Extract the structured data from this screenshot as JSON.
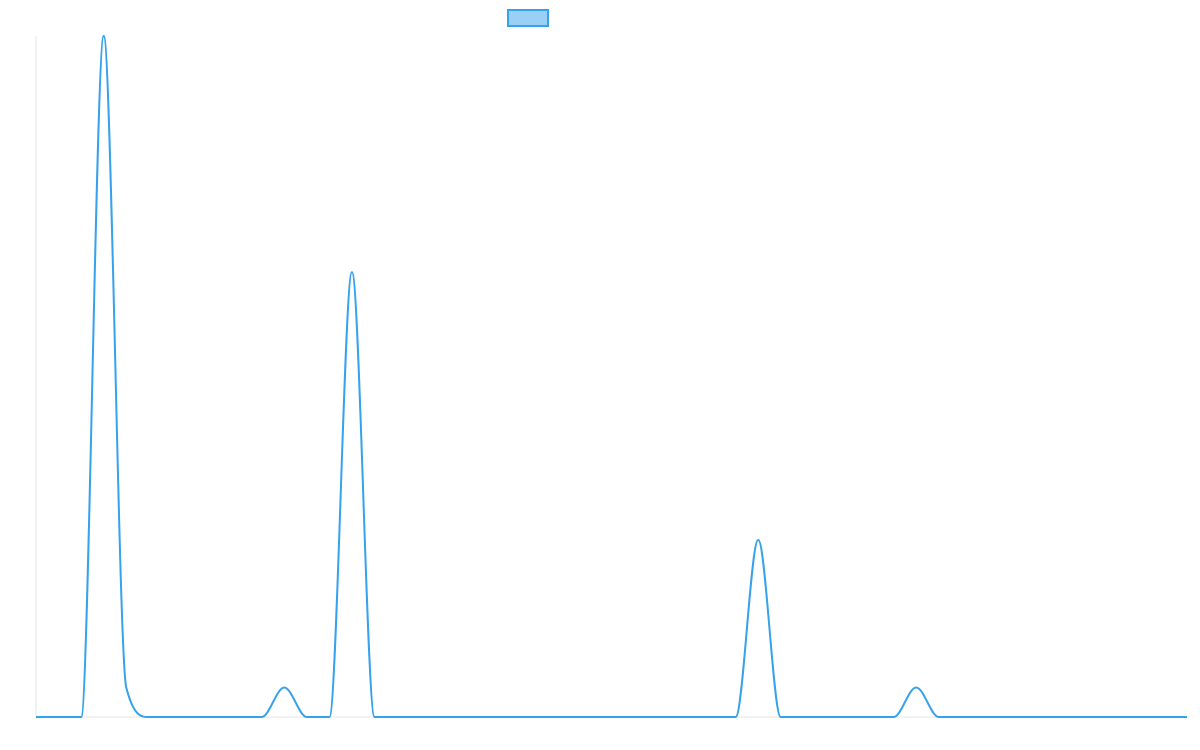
{
  "chart_data": {
    "type": "line",
    "title": "",
    "xlabel": "",
    "ylabel": "",
    "grid": false,
    "legend": {
      "position": "top-center",
      "entries": [
        {
          "label": "",
          "fill_color": "#9ad0f5",
          "border_color": "#36a2eb"
        }
      ]
    },
    "xlim": [
      0,
      51
    ],
    "ylim": [
      0,
      30
    ],
    "series": [
      {
        "color": "#36a2eb",
        "x": [
          0,
          1,
          2,
          3,
          4,
          5,
          6,
          7,
          8,
          9,
          10,
          11,
          12,
          13,
          14,
          15,
          16,
          17,
          18,
          19,
          20,
          21,
          22,
          23,
          24,
          25,
          26,
          27,
          28,
          29,
          30,
          31,
          32,
          33,
          34,
          35,
          36,
          37,
          38,
          39,
          40,
          41,
          42,
          43,
          44,
          45,
          46,
          47,
          48,
          49,
          50,
          51
        ],
        "y": [
          0,
          0,
          0,
          30,
          1.3,
          0,
          0,
          0,
          0,
          0,
          0,
          1.3,
          0,
          0,
          19.6,
          0,
          0,
          0,
          0,
          0,
          0,
          0,
          0,
          0,
          0,
          0,
          0,
          0,
          0,
          0,
          0,
          0,
          7.8,
          0,
          0,
          0,
          0,
          0,
          0,
          1.3,
          0,
          0,
          0,
          0,
          0,
          0,
          0,
          0,
          0,
          0,
          0,
          0
        ]
      }
    ]
  }
}
